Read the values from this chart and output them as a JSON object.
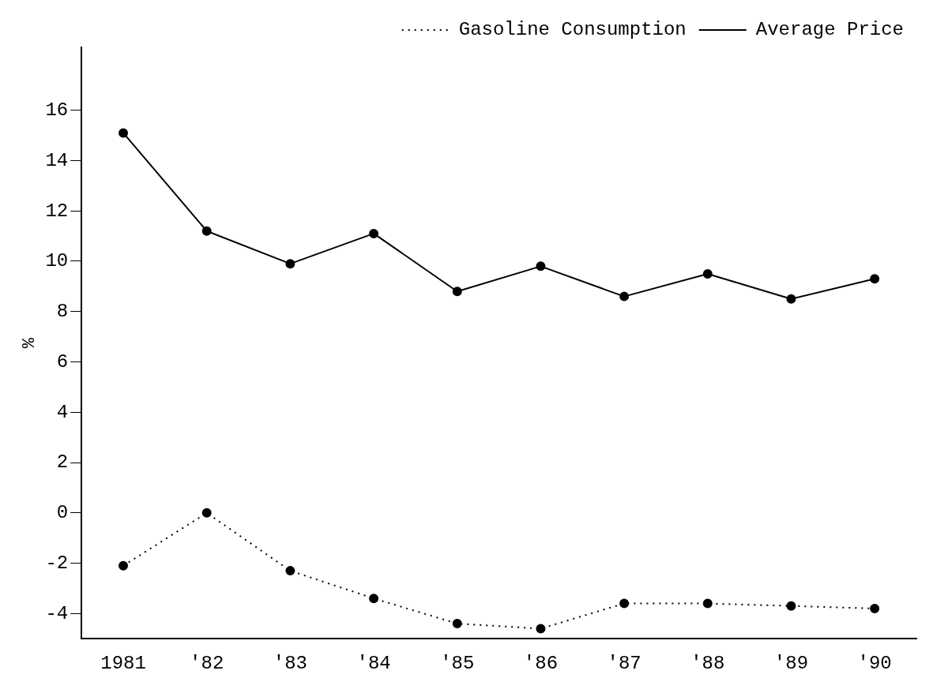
{
  "chart_data": {
    "type": "line",
    "ylabel": "%",
    "categories": [
      "1981",
      "'82",
      "'83",
      "'84",
      "'85",
      "'86",
      "'87",
      "'88",
      "'89",
      "'90"
    ],
    "series": [
      {
        "name": "Gasoline Consumption",
        "color": "#000000",
        "line_style": "dotted",
        "values": [
          -2.1,
          0,
          -2.3,
          -3.4,
          -4.4,
          -4.6,
          -3.6,
          -3.6,
          -3.7,
          -3.8
        ]
      },
      {
        "name": "Average Price",
        "color": "#000000",
        "line_style": "solid",
        "values": [
          15.1,
          11.2,
          9.9,
          11.1,
          8.8,
          9.8,
          8.6,
          9.5,
          8.5,
          9.3
        ]
      }
    ],
    "ylim": [
      -5,
      18.5
    ],
    "yticks": [
      -4,
      -2,
      0,
      2,
      4,
      6,
      8,
      10,
      12,
      14,
      16
    ],
    "grid": false,
    "legend": "top right",
    "marker": "circle"
  }
}
